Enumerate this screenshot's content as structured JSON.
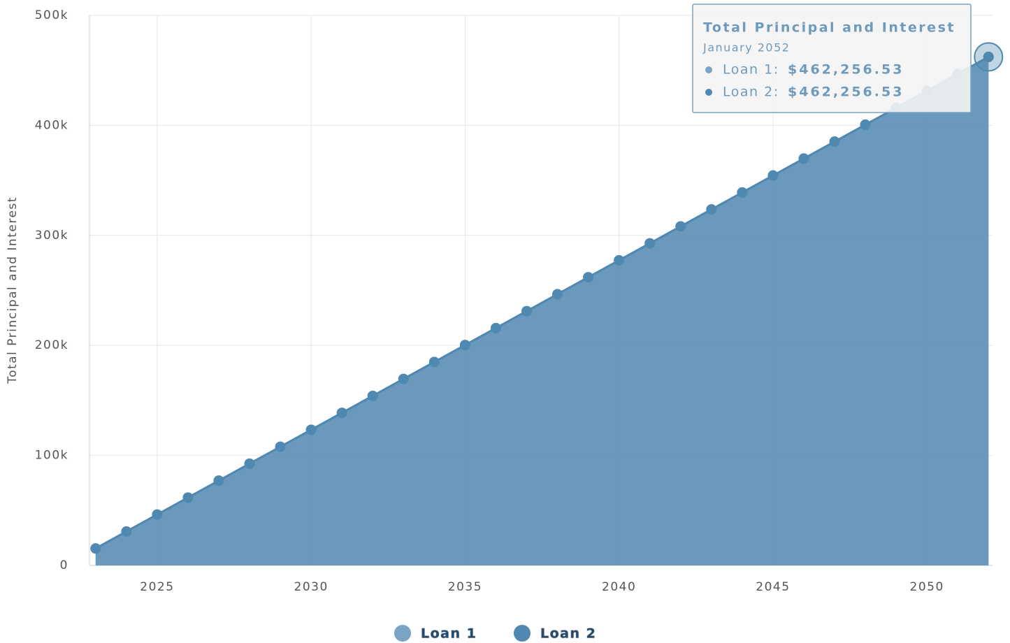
{
  "chart_data": {
    "type": "area",
    "y_label": "Total Principal and Interest",
    "x": [
      2023,
      2024,
      2025,
      2026,
      2027,
      2028,
      2029,
      2030,
      2031,
      2032,
      2033,
      2034,
      2035,
      2036,
      2037,
      2038,
      2039,
      2040,
      2041,
      2042,
      2043,
      2044,
      2045,
      2046,
      2047,
      2048,
      2049,
      2050,
      2051,
      2052
    ],
    "series": [
      {
        "name": "Loan 1",
        "color": "#7aa3c4",
        "values": [
          15409,
          30817,
          46226,
          61634,
          77043,
          92451,
          107860,
          123268,
          138677,
          154086,
          169494,
          184903,
          200311,
          215720,
          231128,
          246537,
          261945,
          277354,
          292762,
          308171,
          323580,
          338988,
          354397,
          369805,
          385214,
          400622,
          416031,
          431439,
          446848,
          462256.53
        ]
      },
      {
        "name": "Loan 2",
        "color": "#4f88b0",
        "values": [
          15409,
          30817,
          46226,
          61634,
          77043,
          92451,
          107860,
          123268,
          138677,
          154086,
          169494,
          184903,
          200311,
          215720,
          231128,
          246537,
          261945,
          277354,
          292762,
          308171,
          323580,
          338988,
          354397,
          369805,
          385214,
          400622,
          416031,
          431439,
          446848,
          462256.53
        ]
      }
    ],
    "xlim": [
      2022.8,
      2052.13
    ],
    "xticks": [
      2025,
      2030,
      2035,
      2040,
      2045,
      2050
    ],
    "ylim": [
      0,
      500000
    ],
    "yticks": [
      0,
      {
        "value": 100000,
        "label": "100k"
      },
      {
        "value": 200000,
        "label": "200k"
      },
      {
        "value": 300000,
        "label": "300k"
      },
      {
        "value": 400000,
        "label": "400k"
      },
      {
        "value": 500000,
        "label": "500k"
      }
    ],
    "grid": true,
    "legend": "bottom",
    "tooltip": {
      "title": "Total Principal and Interest",
      "date": "January 2052",
      "items": [
        {
          "label": "Loan 1:",
          "value": "$462,256.53"
        },
        {
          "label": "Loan 2:",
          "value": "$462,256.53"
        }
      ]
    }
  }
}
